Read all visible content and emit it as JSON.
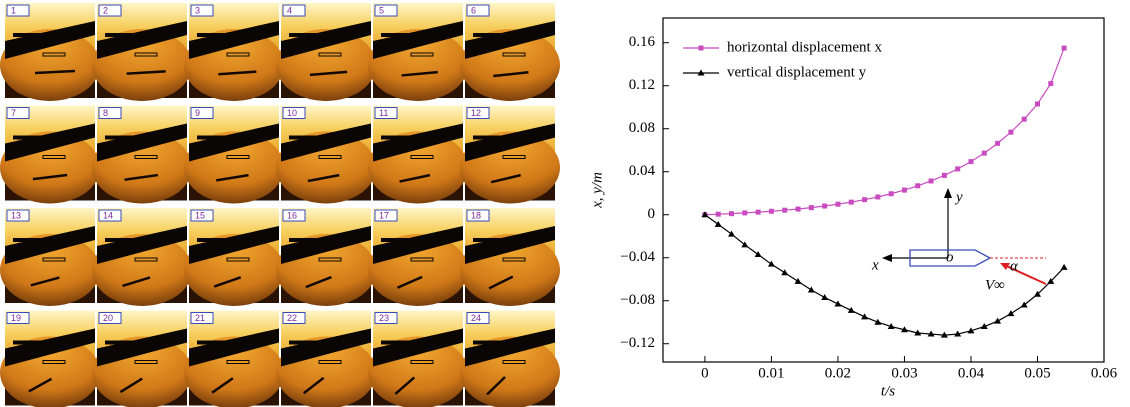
{
  "figure": {
    "frame_labels": [
      "1",
      "2",
      "3",
      "4",
      "5",
      "6",
      "7",
      "8",
      "9",
      "10",
      "11",
      "12",
      "13",
      "14",
      "15",
      "16",
      "17",
      "18",
      "19",
      "20",
      "21",
      "22",
      "23",
      "24"
    ]
  },
  "chart_data": {
    "type": "line",
    "x_label": "t/s",
    "y_label": "x, y/m",
    "x": [
      0,
      0.002,
      0.004,
      0.006,
      0.008,
      0.01,
      0.012,
      0.014,
      0.016,
      0.018,
      0.02,
      0.022,
      0.024,
      0.026,
      0.028,
      0.03,
      0.032,
      0.034,
      0.036,
      0.038,
      0.04,
      0.042,
      0.044,
      0.046,
      0.048,
      0.05,
      0.052,
      0.054
    ],
    "series": [
      {
        "name": "horizontal displacement x",
        "color": "#c84cc0",
        "marker": "square",
        "values": [
          0,
          0.0005,
          0.001,
          0.0017,
          0.0024,
          0.0032,
          0.0042,
          0.0053,
          0.0066,
          0.0081,
          0.0098,
          0.0117,
          0.014,
          0.0165,
          0.0195,
          0.0229,
          0.0269,
          0.0314,
          0.0366,
          0.0426,
          0.0494,
          0.0573,
          0.0664,
          0.0768,
          0.0889,
          0.103,
          0.122,
          0.155
        ]
      },
      {
        "name": "vertical displacement y",
        "color": "#000000",
        "marker": "triangle",
        "values": [
          0,
          -0.009,
          -0.018,
          -0.028,
          -0.037,
          -0.046,
          -0.054,
          -0.062,
          -0.07,
          -0.077,
          -0.083,
          -0.089,
          -0.095,
          -0.1,
          -0.104,
          -0.107,
          -0.11,
          -0.111,
          -0.112,
          -0.111,
          -0.108,
          -0.104,
          -0.099,
          -0.092,
          -0.084,
          -0.074,
          -0.062,
          -0.049
        ]
      }
    ],
    "xlim": [
      -0.0063,
      0.06
    ],
    "xticks": [
      0,
      0.01,
      0.02,
      0.03,
      0.04,
      0.05,
      0.06
    ],
    "ylim": [
      -0.137,
      0.183
    ],
    "yticks": [
      {
        "value": -0.12,
        "label": "−0.12"
      },
      {
        "value": -0.08,
        "label": "−0.08"
      },
      {
        "value": -0.04,
        "label": "−0.04"
      },
      0,
      0.04,
      0.08,
      0.12,
      0.16
    ],
    "legend": "upper-left",
    "inset_labels": {
      "y": "y",
      "x": "x",
      "origin": "o",
      "angle": "α",
      "velocity": "V∞"
    }
  }
}
